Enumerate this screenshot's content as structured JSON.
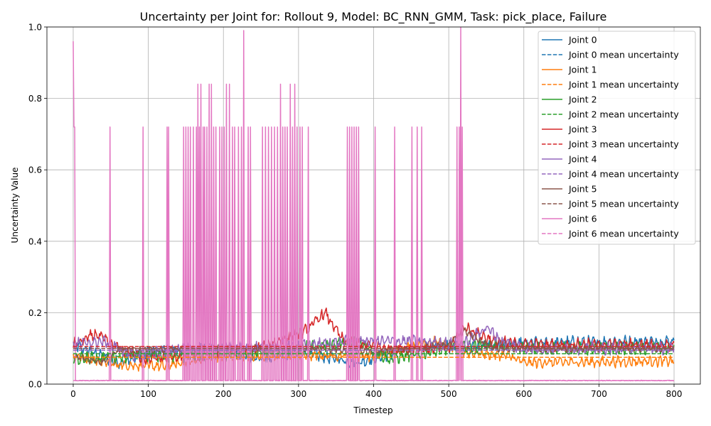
{
  "chart_data": {
    "type": "line",
    "title": "Uncertainty per Joint for: Rollout 9, Model: BC_RNN_GMM, Task: pick_place, Failure",
    "xlabel": "Timestep",
    "ylabel": "Uncertainty Value",
    "xlim": [
      -35,
      835
    ],
    "ylim": [
      0,
      1.0
    ],
    "xticks": [
      0,
      100,
      200,
      300,
      400,
      500,
      600,
      700,
      800
    ],
    "yticks": [
      0.0,
      0.2,
      0.4,
      0.6,
      0.8,
      1.0
    ],
    "ytick_labels": [
      "0.0",
      "0.2",
      "0.4",
      "0.6",
      "0.8",
      "1.0"
    ],
    "grid": true,
    "legend_position": "top-right",
    "n_timesteps": 800,
    "series": [
      {
        "name": "Joint 0",
        "color": "#1f77b4",
        "mean": 0.085,
        "base": 0.085,
        "amp": 0.02,
        "segments": [
          [
            0,
            0.11
          ],
          [
            60,
            0.06
          ],
          [
            100,
            0.09
          ],
          [
            200,
            0.1
          ],
          [
            240,
            0.07
          ],
          [
            300,
            0.09
          ],
          [
            380,
            0.06
          ],
          [
            420,
            0.085
          ],
          [
            490,
            0.11
          ],
          [
            520,
            0.1
          ],
          [
            600,
            0.115
          ],
          [
            800,
            0.12
          ]
        ]
      },
      {
        "name": "Joint 0 mean uncertainty",
        "color": "#1f77b4",
        "dashed": true,
        "value": 0.085
      },
      {
        "name": "Joint 1",
        "color": "#ff7f0e",
        "mean": 0.075,
        "base": 0.075,
        "amp": 0.018,
        "segments": [
          [
            0,
            0.08
          ],
          [
            60,
            0.055
          ],
          [
            120,
            0.05
          ],
          [
            200,
            0.08
          ],
          [
            300,
            0.08
          ],
          [
            400,
            0.08
          ],
          [
            480,
            0.12
          ],
          [
            520,
            0.09
          ],
          [
            580,
            0.08
          ],
          [
            600,
            0.06
          ],
          [
            800,
            0.065
          ]
        ]
      },
      {
        "name": "Joint 1 mean uncertainty",
        "color": "#ff7f0e",
        "dashed": true,
        "value": 0.075
      },
      {
        "name": "Joint 2",
        "color": "#2ca02c",
        "mean": 0.085,
        "base": 0.085,
        "amp": 0.02,
        "segments": [
          [
            0,
            0.07
          ],
          [
            100,
            0.08
          ],
          [
            200,
            0.08
          ],
          [
            300,
            0.1
          ],
          [
            380,
            0.12
          ],
          [
            420,
            0.07
          ],
          [
            500,
            0.1
          ],
          [
            560,
            0.11
          ],
          [
            600,
            0.1
          ],
          [
            800,
            0.1
          ]
        ]
      },
      {
        "name": "Joint 2 mean uncertainty",
        "color": "#2ca02c",
        "dashed": true,
        "value": 0.085
      },
      {
        "name": "Joint 3",
        "color": "#d62728",
        "mean": 0.105,
        "base": 0.105,
        "amp": 0.02,
        "segments": [
          [
            0,
            0.11
          ],
          [
            30,
            0.14
          ],
          [
            60,
            0.1
          ],
          [
            100,
            0.07
          ],
          [
            150,
            0.08
          ],
          [
            250,
            0.1
          ],
          [
            310,
            0.15
          ],
          [
            335,
            0.2
          ],
          [
            360,
            0.12
          ],
          [
            420,
            0.1
          ],
          [
            500,
            0.1
          ],
          [
            520,
            0.16
          ],
          [
            560,
            0.12
          ],
          [
            600,
            0.11
          ],
          [
            800,
            0.11
          ]
        ]
      },
      {
        "name": "Joint 3 mean uncertainty",
        "color": "#d62728",
        "dashed": true,
        "value": 0.105
      },
      {
        "name": "Joint 4",
        "color": "#9467bd",
        "mean": 0.095,
        "base": 0.095,
        "amp": 0.02,
        "segments": [
          [
            0,
            0.11
          ],
          [
            40,
            0.12
          ],
          [
            80,
            0.08
          ],
          [
            150,
            0.1
          ],
          [
            250,
            0.1
          ],
          [
            380,
            0.12
          ],
          [
            450,
            0.12
          ],
          [
            520,
            0.11
          ],
          [
            550,
            0.16
          ],
          [
            570,
            0.12
          ],
          [
            600,
            0.1
          ],
          [
            800,
            0.1
          ]
        ]
      },
      {
        "name": "Joint 4 mean uncertainty",
        "color": "#9467bd",
        "dashed": true,
        "value": 0.095
      },
      {
        "name": "Joint 5",
        "color": "#8c564b",
        "mean": 0.1,
        "base": 0.1,
        "amp": 0.012,
        "segments": [
          [
            0,
            0.08
          ],
          [
            40,
            0.06
          ],
          [
            60,
            0.095
          ],
          [
            200,
            0.1
          ],
          [
            300,
            0.1
          ],
          [
            400,
            0.09
          ],
          [
            500,
            0.11
          ],
          [
            520,
            0.15
          ],
          [
            560,
            0.1
          ],
          [
            800,
            0.1
          ]
        ]
      },
      {
        "name": "Joint 5 mean uncertainty",
        "color": "#8c564b",
        "dashed": true,
        "value": 0.1
      },
      {
        "name": "Joint 6",
        "color": "#e377c2",
        "mean": 0.01,
        "base": 0.01,
        "spikes": [
          [
            0,
            0.96
          ],
          [
            1,
            0.72
          ],
          [
            2,
            0.72
          ],
          [
            49,
            0.72
          ],
          [
            93,
            0.72
          ],
          [
            125,
            0.72
          ],
          [
            127,
            0.72
          ],
          [
            147,
            0.72
          ],
          [
            150,
            0.72
          ],
          [
            153,
            0.72
          ],
          [
            156,
            0.72
          ],
          [
            160,
            0.72
          ],
          [
            164,
            0.72
          ],
          [
            166,
            0.84
          ],
          [
            168,
            0.72
          ],
          [
            170,
            0.84
          ],
          [
            173,
            0.72
          ],
          [
            175,
            0.72
          ],
          [
            178,
            0.72
          ],
          [
            181,
            0.84
          ],
          [
            184,
            0.84
          ],
          [
            187,
            0.72
          ],
          [
            190,
            0.72
          ],
          [
            195,
            0.72
          ],
          [
            198,
            0.72
          ],
          [
            201,
            0.72
          ],
          [
            204,
            0.84
          ],
          [
            208,
            0.84
          ],
          [
            212,
            0.72
          ],
          [
            215,
            0.72
          ],
          [
            220,
            0.72
          ],
          [
            224,
            0.72
          ],
          [
            227,
            0.99
          ],
          [
            233,
            0.72
          ],
          [
            236,
            0.72
          ],
          [
            252,
            0.72
          ],
          [
            256,
            0.72
          ],
          [
            260,
            0.72
          ],
          [
            264,
            0.72
          ],
          [
            268,
            0.72
          ],
          [
            272,
            0.72
          ],
          [
            276,
            0.84
          ],
          [
            279,
            0.72
          ],
          [
            282,
            0.72
          ],
          [
            285,
            0.72
          ],
          [
            289,
            0.84
          ],
          [
            292,
            0.72
          ],
          [
            295,
            0.84
          ],
          [
            298,
            0.72
          ],
          [
            302,
            0.72
          ],
          [
            305,
            0.72
          ],
          [
            313,
            0.72
          ],
          [
            365,
            0.72
          ],
          [
            368,
            0.72
          ],
          [
            371,
            0.72
          ],
          [
            374,
            0.72
          ],
          [
            377,
            0.72
          ],
          [
            380,
            0.72
          ],
          [
            402,
            0.72
          ],
          [
            428,
            0.72
          ],
          [
            451,
            0.72
          ],
          [
            458,
            0.72
          ],
          [
            464,
            0.72
          ],
          [
            511,
            0.72
          ],
          [
            514,
            0.72
          ],
          [
            516,
            1.0
          ],
          [
            518,
            0.72
          ]
        ]
      },
      {
        "name": "Joint 6 mean uncertainty",
        "color": "#e377c2",
        "dashed": true,
        "value": 0.01
      }
    ]
  }
}
